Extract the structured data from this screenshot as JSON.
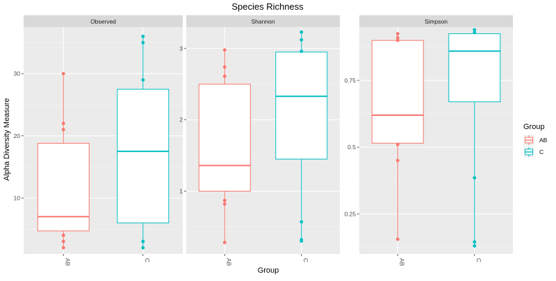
{
  "chart_data": {
    "type": "box",
    "title": "Species Richness",
    "xlabel": "Group",
    "ylabel": "Alpha Diversity Measure",
    "categories": [
      "AB",
      "C"
    ],
    "legend": {
      "title": "Group",
      "position": "right",
      "entries": [
        {
          "label": "AB",
          "color": "#F8766D"
        },
        {
          "label": "C",
          "color": "#00BFC4"
        }
      ]
    },
    "grid": true,
    "facets": [
      {
        "name": "Observed",
        "ylim": [
          1,
          37.5
        ],
        "yticks": [
          10,
          20,
          30
        ],
        "boxes": [
          {
            "group": "AB",
            "min": 2,
            "q1": 4.7,
            "median": 7,
            "q3": 18.8,
            "max": 30,
            "points": [
              30,
              22,
              21,
              4,
              3,
              2
            ]
          },
          {
            "group": "C",
            "min": 2,
            "q1": 6,
            "median": 17.5,
            "q3": 27.5,
            "max": 36,
            "points": [
              36,
              35,
              29,
              3,
              3,
              2
            ]
          }
        ]
      },
      {
        "name": "Shannon",
        "ylim": [
          0.12,
          3.3
        ],
        "yticks": [
          1,
          2,
          3
        ],
        "boxes": [
          {
            "group": "AB",
            "min": 0.28,
            "q1": 1.0,
            "median": 1.36,
            "q3": 2.5,
            "max": 2.98,
            "points": [
              2.98,
              2.74,
              2.61,
              0.87,
              0.82,
              0.28
            ]
          },
          {
            "group": "C",
            "min": 0.3,
            "q1": 1.45,
            "median": 2.33,
            "q3": 2.95,
            "max": 3.23,
            "points": [
              3.23,
              3.12,
              2.96,
              0.57,
              0.32,
              0.3
            ]
          }
        ]
      },
      {
        "name": "Simpson",
        "ylim": [
          0.1,
          0.95
        ],
        "yticks": [
          0.25,
          0.5,
          0.75
        ],
        "boxes": [
          {
            "group": "AB",
            "min": 0.155,
            "q1": 0.515,
            "median": 0.62,
            "q3": 0.9,
            "max": 0.92,
            "points": [
              0.925,
              0.91,
              0.9,
              0.51,
              0.45,
              0.155
            ]
          },
          {
            "group": "C",
            "min": 0.13,
            "q1": 0.67,
            "median": 0.86,
            "q3": 0.925,
            "max": 0.94,
            "points": [
              0.94,
              0.93,
              0.385,
              0.145,
              0.13
            ]
          }
        ]
      }
    ]
  }
}
